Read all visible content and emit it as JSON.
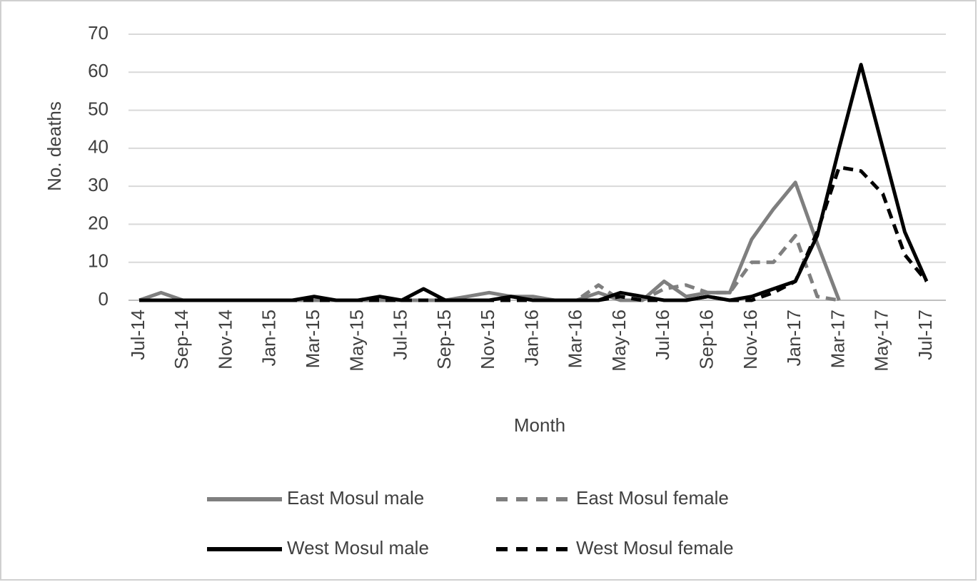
{
  "chart_data": {
    "type": "line",
    "x_label": "Month",
    "y_label": "No. deaths",
    "categories": [
      "Jul-14",
      null,
      "Sep-14",
      null,
      "Nov-14",
      null,
      "Jan-15",
      null,
      "Mar-15",
      null,
      "May-15",
      null,
      "Jul-15",
      null,
      "Sep-15",
      null,
      "Nov-15",
      null,
      "Jan-16",
      null,
      "Mar-16",
      null,
      "May-16",
      null,
      "Jul-16",
      null,
      "Sep-16",
      null,
      "Nov-16",
      null,
      "Jan-17",
      null,
      "Mar-17",
      null,
      "May-17",
      null,
      "Jul-17"
    ],
    "ylim": [
      0,
      70
    ],
    "yticks": [
      0,
      10,
      20,
      30,
      40,
      50,
      60,
      70
    ],
    "grid": true,
    "series": [
      {
        "name": "East Mosul male",
        "color": "#7f7f7f",
        "style": "solid",
        "values": [
          0,
          2,
          0,
          0,
          0,
          0,
          0,
          0,
          0,
          0,
          0,
          0,
          0,
          0,
          0,
          1,
          2,
          1,
          1,
          0,
          0,
          2,
          0,
          0,
          5,
          1,
          2,
          2,
          16,
          24,
          31,
          15,
          0,
          null,
          null,
          null,
          null
        ]
      },
      {
        "name": "East Mosul female",
        "color": "#7f7f7f",
        "style": "dashed",
        "values": [
          0,
          0,
          0,
          0,
          0,
          0,
          0,
          0,
          0,
          0,
          0,
          0,
          0,
          0,
          0,
          0,
          0,
          0,
          0,
          0,
          0,
          4,
          0,
          0,
          3,
          4,
          2,
          2,
          10,
          10,
          17,
          1,
          0,
          null,
          null,
          null,
          null
        ]
      },
      {
        "name": "West Mosul male",
        "color": "#000000",
        "style": "solid",
        "values": [
          0,
          0,
          0,
          0,
          0,
          0,
          0,
          0,
          1,
          0,
          0,
          1,
          0,
          3,
          0,
          0,
          0,
          1,
          0,
          0,
          0,
          0,
          2,
          1,
          0,
          0,
          1,
          0,
          1,
          3,
          5,
          17,
          40,
          62,
          40,
          18,
          5
        ]
      },
      {
        "name": "West Mosul female",
        "color": "#000000",
        "style": "dashed",
        "values": [
          0,
          0,
          0,
          0,
          0,
          0,
          0,
          0,
          0,
          0,
          0,
          0,
          0,
          0,
          0,
          0,
          0,
          0,
          0,
          0,
          0,
          0,
          1,
          0,
          0,
          0,
          1,
          0,
          0,
          2,
          5,
          18,
          35,
          34,
          28,
          12,
          5
        ]
      }
    ]
  }
}
